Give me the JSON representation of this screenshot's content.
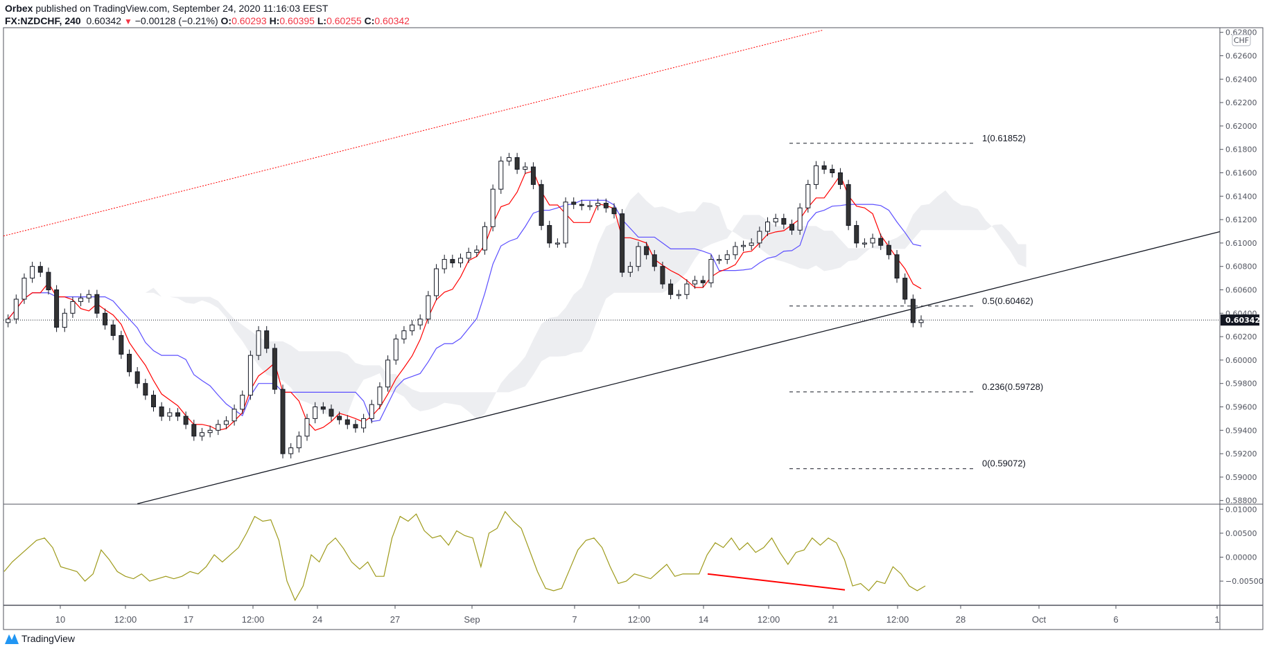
{
  "header": {
    "publisher": "Orbex",
    "published_text": "published on TradingView.com, September 24, 2020 11:16:03 EEST",
    "symbol": "FX:NZDCHF, 240",
    "last": "0.60342",
    "change": "−0.00128 (−0.21%)",
    "o_label": "O:",
    "o": "0.60293",
    "h_label": "H:",
    "h": "0.60395",
    "l_label": "L:",
    "l": "0.60255",
    "c_label": "C:",
    "c": "0.60342"
  },
  "currency_badge": "CHF",
  "footer": {
    "logo_text": "TradingView"
  },
  "colors": {
    "tenkan": "#ff0000",
    "kijun": "#5b4eff",
    "cloud": "#e8eaed",
    "oscillator": "#9e9a1a",
    "divergence": "#ff0000",
    "channel_top": "#ff0000",
    "trendline": "#131722",
    "up_candle": "#ffffff",
    "down_candle": "#333333"
  },
  "chart_data": [
    {
      "type": "candlestick",
      "pane": "price",
      "ylim": [
        0.588,
        0.628
      ],
      "ytick_labels": [
        "0.62800",
        "0.62600",
        "0.62400",
        "0.62200",
        "0.62000",
        "0.61800",
        "0.61600",
        "0.61400",
        "0.61200",
        "0.61000",
        "0.60800",
        "0.60600",
        "0.60400",
        "0.60200",
        "0.60000",
        "0.59800",
        "0.59600",
        "0.59400",
        "0.59200",
        "0.59000",
        "0.58800"
      ],
      "last_price_label": "0.60342",
      "xtick_labels": [
        "10",
        "12:00",
        "17",
        "12:00",
        "24",
        "27",
        "Sep",
        "7",
        "12:00",
        "14",
        "12:00",
        "21",
        "12:00",
        "28",
        "Oct",
        "6",
        "1"
      ],
      "closes": [
        0.6035,
        0.6052,
        0.607,
        0.608,
        0.6075,
        0.606,
        0.6028,
        0.604,
        0.605,
        0.6053,
        0.6056,
        0.604,
        0.603,
        0.6021,
        0.6005,
        0.599,
        0.598,
        0.597,
        0.596,
        0.5952,
        0.5955,
        0.5952,
        0.5945,
        0.5935,
        0.5938,
        0.594,
        0.5945,
        0.5948,
        0.5958,
        0.597,
        0.6004,
        0.6025,
        0.601,
        0.5975,
        0.592,
        0.5925,
        0.5935,
        0.595,
        0.596,
        0.5958,
        0.5952,
        0.5949,
        0.5945,
        0.5942,
        0.595,
        0.5962,
        0.5977,
        0.6,
        0.6018,
        0.6025,
        0.603,
        0.6035,
        0.6055,
        0.6078,
        0.6086,
        0.6083,
        0.6087,
        0.6092,
        0.6094,
        0.6114,
        0.6146,
        0.617,
        0.6173,
        0.6163,
        0.6165,
        0.615,
        0.6115,
        0.61,
        0.61,
        0.6135,
        0.6133,
        0.6132,
        0.6132,
        0.6134,
        0.613,
        0.6125,
        0.6075,
        0.608,
        0.6097,
        0.609,
        0.608,
        0.6065,
        0.6056,
        0.6056,
        0.6065,
        0.6068,
        0.6066,
        0.6086,
        0.6086,
        0.609,
        0.6097,
        0.6098,
        0.61,
        0.611,
        0.6118,
        0.6121,
        0.6116,
        0.6111,
        0.613,
        0.615,
        0.6166,
        0.6163,
        0.616,
        0.615,
        0.6115,
        0.61,
        0.61,
        0.6104,
        0.6098,
        0.609,
        0.607,
        0.6052,
        0.6032,
        0.60342
      ],
      "fib_levels": [
        {
          "ratio": "1",
          "price": 0.61852,
          "label": "1(0.61852)"
        },
        {
          "ratio": "0.5",
          "price": 0.60462,
          "label": "0.5(0.60462)"
        },
        {
          "ratio": "0.236",
          "price": 0.59728,
          "label": "0.236(0.59728)"
        },
        {
          "ratio": "0",
          "price": 0.59072,
          "label": "0(0.59072)"
        }
      ],
      "trendline_prices": [
        0.58772,
        0.61097
      ],
      "channel_top_prices": [
        0.6106,
        0.6282
      ]
    },
    {
      "type": "line",
      "pane": "oscillator",
      "ylim": [
        -0.0085,
        0.0105
      ],
      "ytick_labels": [
        "0.01000",
        "0.00500",
        "0.00000",
        "−0.00500"
      ],
      "values": [
        -0.003,
        -0.001,
        0.0005,
        0.002,
        0.0035,
        0.004,
        0.002,
        -0.002,
        -0.0025,
        -0.003,
        -0.005,
        -0.0035,
        0.0015,
        -0.0005,
        -0.003,
        -0.004,
        -0.0045,
        -0.0035,
        -0.005,
        -0.0045,
        -0.004,
        -0.0045,
        -0.004,
        -0.003,
        -0.0035,
        -0.002,
        0.0005,
        -0.001,
        0.0005,
        0.002,
        0.005,
        0.0085,
        0.0075,
        0.0078,
        0.0035,
        -0.005,
        -0.009,
        -0.006,
        0.0005,
        -0.001,
        0.0025,
        0.004,
        0.0018,
        -0.001,
        -0.0025,
        -0.001,
        -0.004,
        -0.004,
        0.004,
        0.0085,
        0.0075,
        0.009,
        0.0055,
        0.004,
        0.0045,
        0.0025,
        0.0055,
        0.0045,
        0.004,
        -0.002,
        0.005,
        0.006,
        0.0095,
        0.0075,
        0.006,
        0.0015,
        -0.003,
        -0.0065,
        -0.007,
        -0.0065,
        -0.0025,
        0.0015,
        0.0035,
        0.004,
        0.002,
        -0.002,
        -0.0055,
        -0.005,
        -0.0035,
        -0.004,
        -0.0045,
        -0.003,
        -0.0015,
        -0.004,
        -0.0035,
        -0.0035,
        -0.0035,
        0.0005,
        0.003,
        0.002,
        0.004,
        0.0015,
        0.003,
        0.001,
        0.002,
        0.004,
        0.001,
        -0.0015,
        0.001,
        0.0015,
        0.004,
        0.0025,
        0.004,
        0.003,
        -0.0005,
        -0.006,
        -0.0055,
        -0.007,
        -0.005,
        -0.0055,
        -0.002,
        -0.0035,
        -0.006,
        -0.007,
        -0.006
      ],
      "divergence_values": [
        -0.0035,
        -0.00683
      ]
    }
  ]
}
